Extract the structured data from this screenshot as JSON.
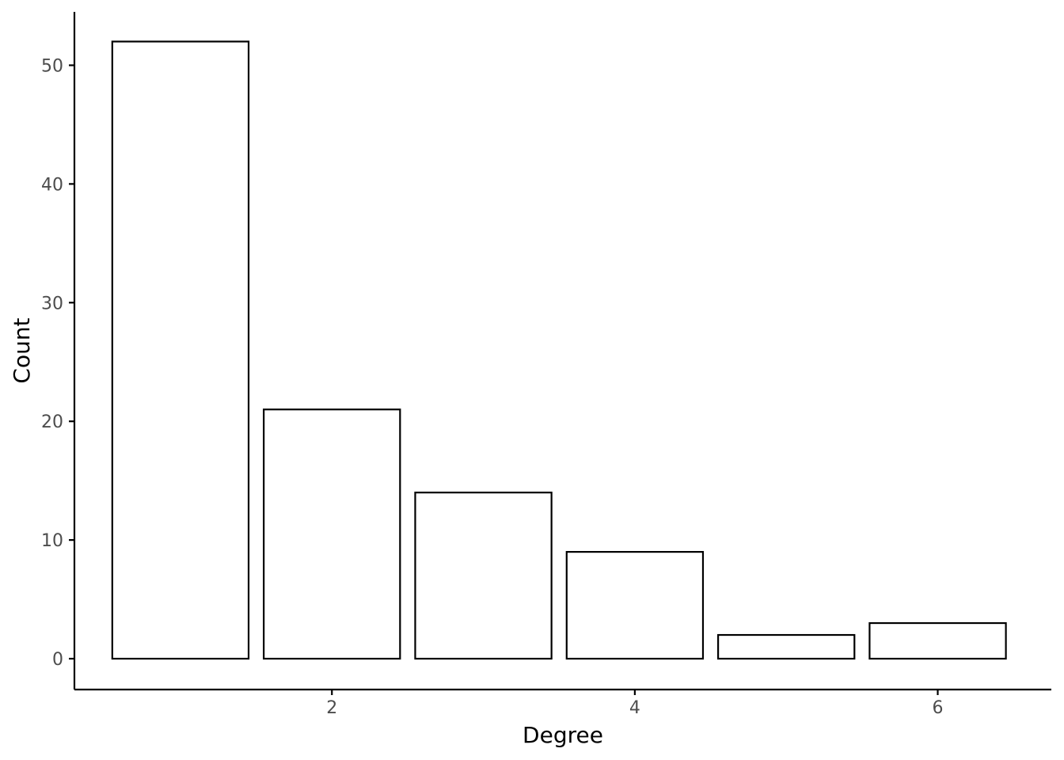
{
  "chart_data": {
    "type": "bar",
    "xlabel": "Degree",
    "ylabel": "Count",
    "x": [
      1,
      2,
      3,
      4,
      5,
      6
    ],
    "values": [
      52,
      21,
      14,
      9,
      2,
      3
    ],
    "xlim": [
      0.3,
      6.75
    ],
    "ylim": [
      -2.6,
      54.5
    ],
    "xticks": [
      2,
      4,
      6
    ],
    "yticks": [
      0,
      10,
      20,
      30,
      40,
      50
    ],
    "bar_width": 0.9,
    "grid": false,
    "bar_fill": "#ffffff",
    "bar_stroke": "#000000"
  }
}
